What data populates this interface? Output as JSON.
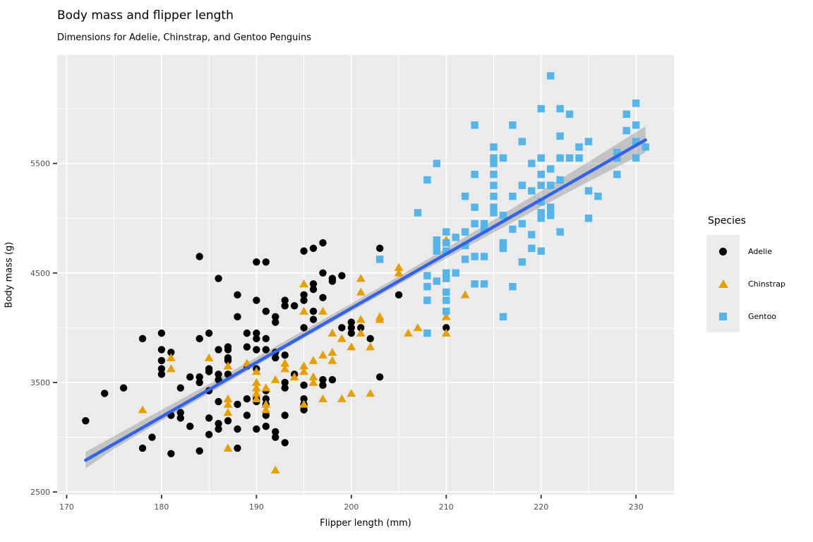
{
  "header": {
    "title": "Body mass and flipper length",
    "subtitle": "Dimensions for Adelie, Chinstrap, and Gentoo Penguins"
  },
  "axes": {
    "tick_label_color": "#4D4D4D",
    "tick_mark_color": "#333333",
    "panel_color": "#EBEBEB",
    "grid_color": "#FFFFFF"
  },
  "chart_data": {
    "type": "scatter",
    "title": "Body mass and flipper length",
    "subtitle": "Dimensions for Adelie, Chinstrap, and Gentoo Penguins",
    "xlabel": "Flipper length (mm)",
    "ylabel": "Body mass (g)",
    "xlim": [
      169,
      234
    ],
    "ylim": [
      2475,
      6490
    ],
    "xticks": [
      170,
      180,
      190,
      200,
      210,
      220,
      230
    ],
    "yticks": [
      2500,
      3500,
      4500,
      5500
    ],
    "x_minor": [
      175,
      185,
      195,
      205,
      215,
      225
    ],
    "y_minor": [
      3000,
      4000,
      5000,
      6000
    ],
    "grid": "on",
    "legend": {
      "title": "Species",
      "position": "right",
      "entries": [
        {
          "label": "Adelie",
          "shape": "circle",
          "color": "#000000"
        },
        {
          "label": "Chinstrap",
          "shape": "triangle",
          "color": "#E69F00"
        },
        {
          "label": "Gentoo",
          "shape": "square",
          "color": "#56B4E9"
        }
      ]
    },
    "trend": {
      "type": "linear-fit",
      "color": "#3563E8",
      "ribbon_color": "rgba(102,102,102,0.30)",
      "x": [
        172,
        231
      ],
      "y": [
        2790,
        5715
      ],
      "ribbon": [
        [
          172,
          2715,
          2865
        ],
        [
          175,
          2895,
          3010
        ],
        [
          180,
          3150,
          3250
        ],
        [
          185,
          3400,
          3485
        ],
        [
          190,
          3655,
          3730
        ],
        [
          195,
          3905,
          3975
        ],
        [
          200,
          4150,
          4220
        ],
        [
          205,
          4395,
          4470
        ],
        [
          210,
          4635,
          4725
        ],
        [
          215,
          4870,
          4985
        ],
        [
          220,
          5105,
          5250
        ],
        [
          225,
          5335,
          5515
        ],
        [
          231,
          5600,
          5840
        ]
      ]
    },
    "series": [
      {
        "name": "Adelie",
        "shape": "circle",
        "color": "#000000",
        "points": [
          [
            172,
            3150
          ],
          [
            174,
            3400
          ],
          [
            176,
            3450
          ],
          [
            178,
            3900
          ],
          [
            178,
            2900
          ],
          [
            179,
            3000
          ],
          [
            180,
            3950
          ],
          [
            180,
            3800
          ],
          [
            180,
            3700
          ],
          [
            180,
            3625
          ],
          [
            180,
            3575
          ],
          [
            181,
            3775
          ],
          [
            181,
            3200
          ],
          [
            181,
            2850
          ],
          [
            182,
            3450
          ],
          [
            182,
            3225
          ],
          [
            182,
            3175
          ],
          [
            183,
            3550
          ],
          [
            183,
            3100
          ],
          [
            184,
            4650
          ],
          [
            184,
            3900
          ],
          [
            184,
            3550
          ],
          [
            184,
            3500
          ],
          [
            184,
            2875
          ],
          [
            185,
            3950
          ],
          [
            185,
            3625
          ],
          [
            185,
            3600
          ],
          [
            185,
            3425
          ],
          [
            185,
            3175
          ],
          [
            185,
            3025
          ],
          [
            186,
            4450
          ],
          [
            186,
            3800
          ],
          [
            186,
            3575
          ],
          [
            186,
            3525
          ],
          [
            186,
            3325
          ],
          [
            186,
            3125
          ],
          [
            186,
            3075
          ],
          [
            187,
            3825
          ],
          [
            187,
            3800
          ],
          [
            187,
            3725
          ],
          [
            187,
            3700
          ],
          [
            187,
            3575
          ],
          [
            187,
            3150
          ],
          [
            188,
            4300
          ],
          [
            188,
            4100
          ],
          [
            188,
            3300
          ],
          [
            188,
            3075
          ],
          [
            188,
            2900
          ],
          [
            189,
            3950
          ],
          [
            189,
            3825
          ],
          [
            189,
            3650
          ],
          [
            189,
            3350
          ],
          [
            189,
            3200
          ],
          [
            190,
            4600
          ],
          [
            190,
            4250
          ],
          [
            190,
            3950
          ],
          [
            190,
            3900
          ],
          [
            190,
            3800
          ],
          [
            190,
            3625
          ],
          [
            190,
            3350
          ],
          [
            190,
            3325
          ],
          [
            190,
            3075
          ],
          [
            191,
            4600
          ],
          [
            191,
            4150
          ],
          [
            191,
            3900
          ],
          [
            191,
            3800
          ],
          [
            191,
            3425
          ],
          [
            191,
            3350
          ],
          [
            191,
            3300
          ],
          [
            191,
            3200
          ],
          [
            191,
            3100
          ],
          [
            192,
            4100
          ],
          [
            192,
            4050
          ],
          [
            192,
            3775
          ],
          [
            192,
            3725
          ],
          [
            192,
            3050
          ],
          [
            192,
            3000
          ],
          [
            193,
            4250
          ],
          [
            193,
            4200
          ],
          [
            193,
            3750
          ],
          [
            193,
            3500
          ],
          [
            193,
            3450
          ],
          [
            193,
            3200
          ],
          [
            193,
            2950
          ],
          [
            194,
            4200
          ],
          [
            194,
            3575
          ],
          [
            195,
            4700
          ],
          [
            195,
            4300
          ],
          [
            195,
            4250
          ],
          [
            195,
            4000
          ],
          [
            195,
            3475
          ],
          [
            195,
            3350
          ],
          [
            195,
            3300
          ],
          [
            195,
            3250
          ],
          [
            196,
            4725
          ],
          [
            196,
            4400
          ],
          [
            196,
            4350
          ],
          [
            196,
            4150
          ],
          [
            196,
            4075
          ],
          [
            197,
            4775
          ],
          [
            197,
            4500
          ],
          [
            197,
            4275
          ],
          [
            197,
            3525
          ],
          [
            197,
            3475
          ],
          [
            198,
            4450
          ],
          [
            198,
            4425
          ],
          [
            198,
            3525
          ],
          [
            199,
            4475
          ],
          [
            199,
            4000
          ],
          [
            200,
            4050
          ],
          [
            200,
            4000
          ],
          [
            200,
            3950
          ],
          [
            201,
            4000
          ],
          [
            202,
            3900
          ],
          [
            203,
            4725
          ],
          [
            203,
            3550
          ],
          [
            205,
            4300
          ],
          [
            210,
            4000
          ]
        ]
      },
      {
        "name": "Chinstrap",
        "shape": "triangle",
        "color": "#E69F00",
        "points": [
          [
            178,
            3250
          ],
          [
            181,
            3725
          ],
          [
            181,
            3625
          ],
          [
            185,
            3725
          ],
          [
            187,
            3650
          ],
          [
            187,
            3350
          ],
          [
            187,
            3300
          ],
          [
            187,
            3225
          ],
          [
            187,
            2900
          ],
          [
            189,
            3675
          ],
          [
            190,
            3600
          ],
          [
            190,
            3500
          ],
          [
            190,
            3450
          ],
          [
            190,
            3400
          ],
          [
            190,
            3350
          ],
          [
            191,
            3450
          ],
          [
            191,
            3300
          ],
          [
            191,
            3250
          ],
          [
            192,
            3525
          ],
          [
            192,
            2700
          ],
          [
            193,
            3675
          ],
          [
            193,
            3625
          ],
          [
            194,
            3550
          ],
          [
            195,
            4400
          ],
          [
            195,
            4150
          ],
          [
            195,
            3650
          ],
          [
            195,
            3600
          ],
          [
            195,
            3300
          ],
          [
            196,
            3700
          ],
          [
            196,
            3550
          ],
          [
            196,
            3500
          ],
          [
            197,
            4150
          ],
          [
            197,
            3750
          ],
          [
            197,
            3350
          ],
          [
            198,
            3950
          ],
          [
            198,
            3775
          ],
          [
            198,
            3700
          ],
          [
            199,
            3900
          ],
          [
            199,
            3350
          ],
          [
            200,
            3825
          ],
          [
            200,
            3400
          ],
          [
            201,
            4450
          ],
          [
            201,
            4325
          ],
          [
            201,
            4075
          ],
          [
            201,
            3950
          ],
          [
            202,
            3825
          ],
          [
            202,
            3400
          ],
          [
            203,
            4100
          ],
          [
            203,
            4075
          ],
          [
            205,
            4550
          ],
          [
            205,
            4500
          ],
          [
            206,
            3950
          ],
          [
            207,
            4000
          ],
          [
            210,
            4800
          ],
          [
            210,
            4100
          ],
          [
            210,
            3950
          ],
          [
            212,
            4300
          ]
        ]
      },
      {
        "name": "Gentoo",
        "shape": "square",
        "color": "#56B4E9",
        "points": [
          [
            203,
            4625
          ],
          [
            207,
            5050
          ],
          [
            208,
            5350
          ],
          [
            208,
            4475
          ],
          [
            208,
            4375
          ],
          [
            208,
            4250
          ],
          [
            208,
            3950
          ],
          [
            209,
            5500
          ],
          [
            209,
            4800
          ],
          [
            209,
            4750
          ],
          [
            209,
            4700
          ],
          [
            209,
            4425
          ],
          [
            210,
            4875
          ],
          [
            210,
            4775
          ],
          [
            210,
            4700
          ],
          [
            210,
            4500
          ],
          [
            210,
            4450
          ],
          [
            210,
            4325
          ],
          [
            210,
            4250
          ],
          [
            210,
            4150
          ],
          [
            211,
            4825
          ],
          [
            211,
            4500
          ],
          [
            212,
            5200
          ],
          [
            212,
            4875
          ],
          [
            212,
            4750
          ],
          [
            212,
            4625
          ],
          [
            213,
            5850
          ],
          [
            213,
            5400
          ],
          [
            213,
            5100
          ],
          [
            213,
            4950
          ],
          [
            213,
            4650
          ],
          [
            213,
            4400
          ],
          [
            214,
            4950
          ],
          [
            214,
            4900
          ],
          [
            214,
            4650
          ],
          [
            214,
            4400
          ],
          [
            215,
            5650
          ],
          [
            215,
            5550
          ],
          [
            215,
            5500
          ],
          [
            215,
            5400
          ],
          [
            215,
            5300
          ],
          [
            215,
            5200
          ],
          [
            215,
            5100
          ],
          [
            215,
            5050
          ],
          [
            216,
            5550
          ],
          [
            216,
            5025
          ],
          [
            216,
            4775
          ],
          [
            216,
            4725
          ],
          [
            216,
            4100
          ],
          [
            217,
            5850
          ],
          [
            217,
            5200
          ],
          [
            217,
            4900
          ],
          [
            217,
            4375
          ],
          [
            218,
            5700
          ],
          [
            218,
            5300
          ],
          [
            218,
            4950
          ],
          [
            218,
            4600
          ],
          [
            219,
            5500
          ],
          [
            219,
            5250
          ],
          [
            219,
            4850
          ],
          [
            219,
            4725
          ],
          [
            220,
            6000
          ],
          [
            220,
            5550
          ],
          [
            220,
            5400
          ],
          [
            220,
            5300
          ],
          [
            220,
            5150
          ],
          [
            220,
            5050
          ],
          [
            220,
            5000
          ],
          [
            220,
            4700
          ],
          [
            221,
            6300
          ],
          [
            221,
            5450
          ],
          [
            221,
            5300
          ],
          [
            221,
            5100
          ],
          [
            221,
            5050
          ],
          [
            221,
            5025
          ],
          [
            222,
            6000
          ],
          [
            222,
            5750
          ],
          [
            222,
            5550
          ],
          [
            222,
            5350
          ],
          [
            222,
            4875
          ],
          [
            223,
            5950
          ],
          [
            223,
            5550
          ],
          [
            224,
            5650
          ],
          [
            224,
            5550
          ],
          [
            225,
            5700
          ],
          [
            225,
            5250
          ],
          [
            225,
            5000
          ],
          [
            226,
            5200
          ],
          [
            228,
            5600
          ],
          [
            228,
            5550
          ],
          [
            228,
            5400
          ],
          [
            229,
            5950
          ],
          [
            229,
            5800
          ],
          [
            230,
            6050
          ],
          [
            230,
            5850
          ],
          [
            230,
            5700
          ],
          [
            230,
            5550
          ],
          [
            231,
            5650
          ]
        ]
      }
    ]
  }
}
